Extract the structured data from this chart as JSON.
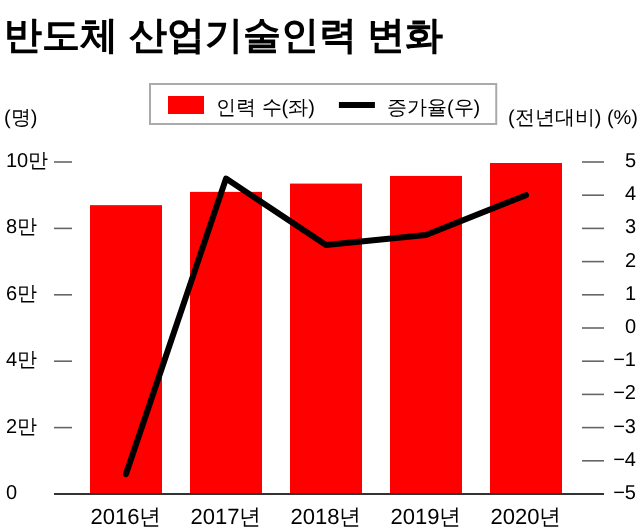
{
  "chart_data": {
    "type": "bar",
    "title": "반도체 산업기술인력 변화",
    "categories": [
      "2016년",
      "2017년",
      "2018년",
      "2019년",
      "2020년"
    ],
    "series": [
      {
        "name": "인력 수(좌)",
        "color": "#ff0000",
        "values": [
          8.7,
          9.1,
          9.35,
          9.58,
          9.97
        ]
      },
      {
        "name": "증가율(우)",
        "type": "line",
        "axis": "y2",
        "color": "#000000",
        "values": [
          -4.4,
          4.5,
          2.5,
          2.8,
          4.0
        ]
      }
    ],
    "ylabel": "(명)",
    "y2label": "(전년대비) (%)",
    "ylim": [
      0,
      10
    ],
    "yticks": [
      0,
      {
        "value": 2,
        "label": "2만"
      },
      {
        "value": 4,
        "label": "4만"
      },
      {
        "value": 6,
        "label": "6만"
      },
      {
        "value": 8,
        "label": "8만"
      },
      {
        "value": 10,
        "label": "10만"
      }
    ],
    "y2lim": [
      -5,
      5
    ],
    "y2ticks": [
      {
        "value": -5,
        "label": "−5"
      },
      {
        "value": -4,
        "label": "−4"
      },
      {
        "value": -3,
        "label": "−3"
      },
      {
        "value": -2,
        "label": "−2"
      },
      {
        "value": -1,
        "label": "−1"
      },
      0,
      1,
      2,
      3,
      4,
      5
    ],
    "legend": "top",
    "grid": false
  }
}
